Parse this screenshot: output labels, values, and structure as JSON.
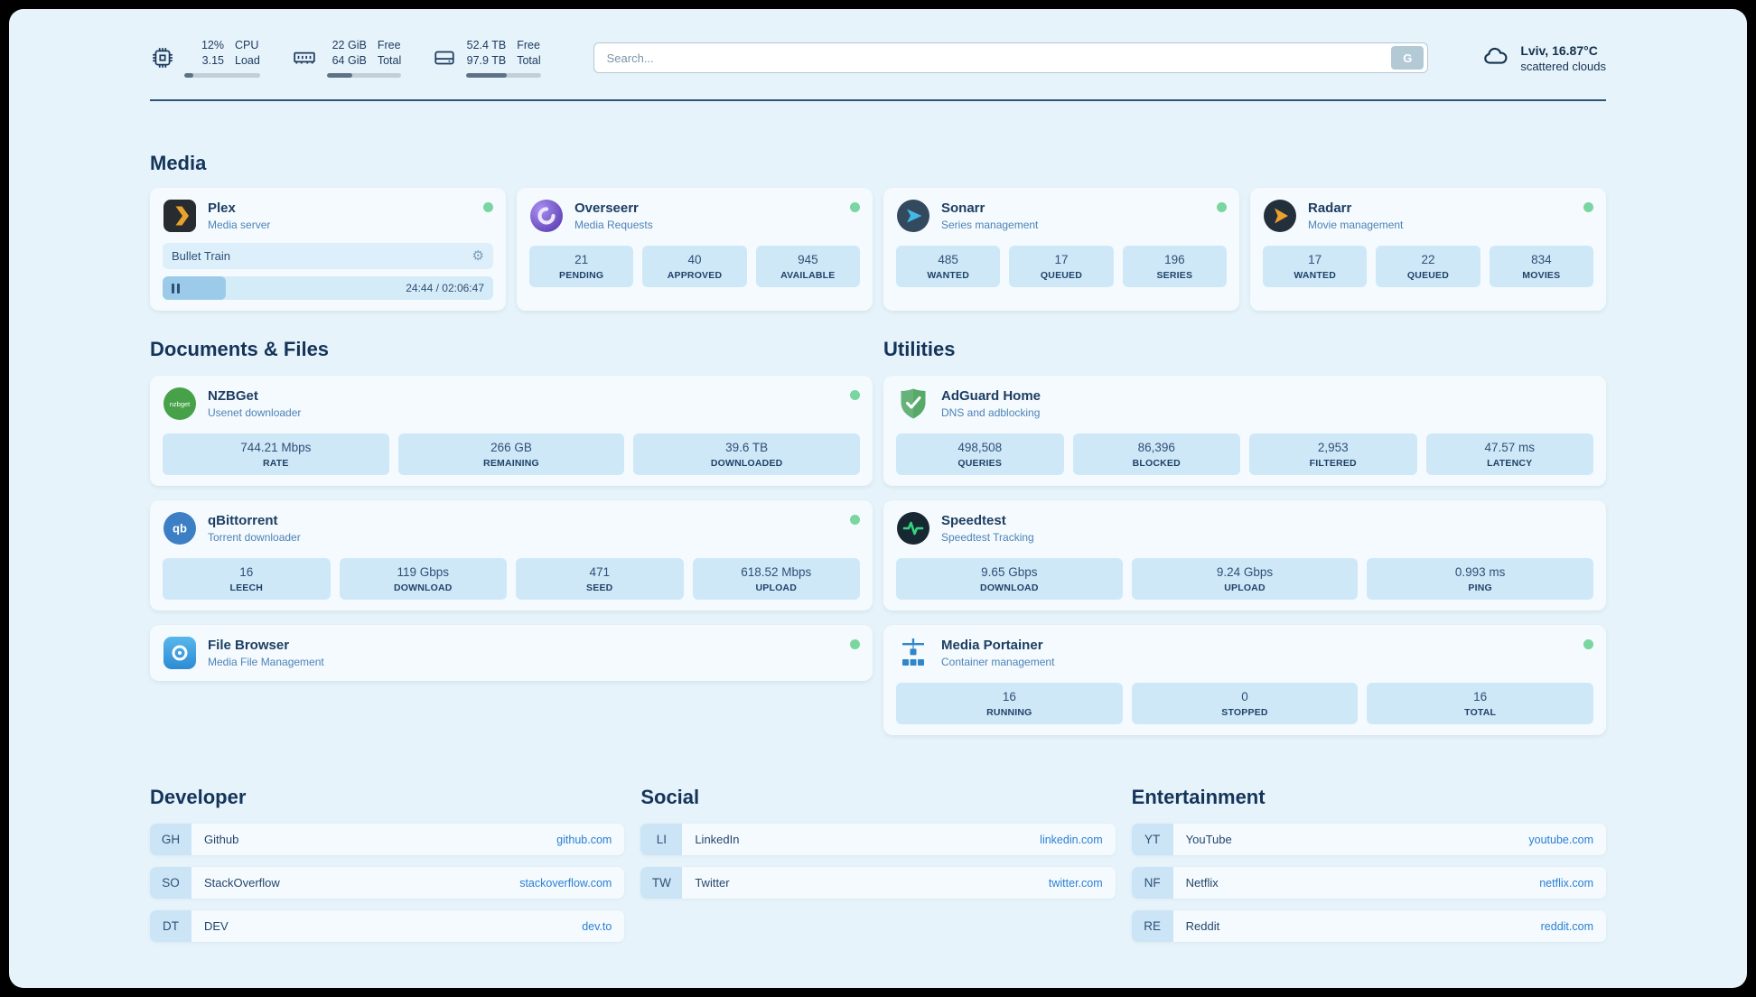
{
  "topbar": {
    "cpu": {
      "value_top": "12%",
      "value_bottom": "3.15",
      "label_top": "CPU",
      "label_bottom": "Load",
      "progress_pct": 12
    },
    "ram": {
      "value_top": "22 GiB",
      "value_bottom": "64 GiB",
      "label_top": "Free",
      "label_bottom": "Total",
      "progress_pct": 34
    },
    "disk": {
      "value_top": "52.4 TB",
      "value_bottom": "97.9 TB",
      "label_top": "Free",
      "label_bottom": "Total",
      "progress_pct": 54
    },
    "search": {
      "placeholder": "Search...",
      "button_label": "G"
    },
    "weather": {
      "location": "Lviv, 16.87°C",
      "condition": "scattered clouds"
    }
  },
  "sections": {
    "media": {
      "title": "Media"
    },
    "documents": {
      "title": "Documents & Files"
    },
    "utilities": {
      "title": "Utilities"
    },
    "developer": {
      "title": "Developer"
    },
    "social": {
      "title": "Social"
    },
    "entertainment": {
      "title": "Entertainment"
    }
  },
  "apps": {
    "plex": {
      "name": "Plex",
      "subtitle": "Media server",
      "now_playing": "Bullet Train",
      "time": "24:44 / 02:06:47",
      "progress_pct": 19
    },
    "overseerr": {
      "name": "Overseerr",
      "subtitle": "Media Requests",
      "stats": [
        {
          "value": "21",
          "label": "PENDING"
        },
        {
          "value": "40",
          "label": "APPROVED"
        },
        {
          "value": "945",
          "label": "AVAILABLE"
        }
      ]
    },
    "sonarr": {
      "name": "Sonarr",
      "subtitle": "Series management",
      "stats": [
        {
          "value": "485",
          "label": "WANTED"
        },
        {
          "value": "17",
          "label": "QUEUED"
        },
        {
          "value": "196",
          "label": "SERIES"
        }
      ]
    },
    "radarr": {
      "name": "Radarr",
      "subtitle": "Movie management",
      "stats": [
        {
          "value": "17",
          "label": "WANTED"
        },
        {
          "value": "22",
          "label": "QUEUED"
        },
        {
          "value": "834",
          "label": "MOVIES"
        }
      ]
    },
    "nzbget": {
      "name": "NZBGet",
      "subtitle": "Usenet downloader",
      "stats": [
        {
          "value": "744.21 Mbps",
          "label": "RATE"
        },
        {
          "value": "266 GB",
          "label": "REMAINING"
        },
        {
          "value": "39.6 TB",
          "label": "DOWNLOADED"
        }
      ]
    },
    "qbittorrent": {
      "name": "qBittorrent",
      "subtitle": "Torrent downloader",
      "stats": [
        {
          "value": "16",
          "label": "LEECH"
        },
        {
          "value": "119 Gbps",
          "label": "DOWNLOAD"
        },
        {
          "value": "471",
          "label": "SEED"
        },
        {
          "value": "618.52 Mbps",
          "label": "UPLOAD"
        }
      ]
    },
    "filebrowser": {
      "name": "File Browser",
      "subtitle": "Media File Management"
    },
    "adguard": {
      "name": "AdGuard Home",
      "subtitle": "DNS and adblocking",
      "stats": [
        {
          "value": "498,508",
          "label": "QUERIES"
        },
        {
          "value": "86,396",
          "label": "BLOCKED"
        },
        {
          "value": "2,953",
          "label": "FILTERED"
        },
        {
          "value": "47.57 ms",
          "label": "LATENCY"
        }
      ]
    },
    "speedtest": {
      "name": "Speedtest",
      "subtitle": "Speedtest Tracking",
      "stats": [
        {
          "value": "9.65 Gbps",
          "label": "DOWNLOAD"
        },
        {
          "value": "9.24 Gbps",
          "label": "UPLOAD"
        },
        {
          "value": "0.993 ms",
          "label": "PING"
        }
      ]
    },
    "portainer": {
      "name": "Media Portainer",
      "subtitle": "Container management",
      "stats": [
        {
          "value": "16",
          "label": "RUNNING"
        },
        {
          "value": "0",
          "label": "STOPPED"
        },
        {
          "value": "16",
          "label": "TOTAL"
        }
      ]
    }
  },
  "bookmarks": {
    "developer": [
      {
        "abbr": "GH",
        "name": "Github",
        "url": "github.com"
      },
      {
        "abbr": "SO",
        "name": "StackOverflow",
        "url": "stackoverflow.com"
      },
      {
        "abbr": "DT",
        "name": "DEV",
        "url": "dev.to"
      }
    ],
    "social": [
      {
        "abbr": "LI",
        "name": "LinkedIn",
        "url": "linkedin.com"
      },
      {
        "abbr": "TW",
        "name": "Twitter",
        "url": "twitter.com"
      }
    ],
    "entertainment": [
      {
        "abbr": "YT",
        "name": "YouTube",
        "url": "youtube.com"
      },
      {
        "abbr": "NF",
        "name": "Netflix",
        "url": "netflix.com"
      },
      {
        "abbr": "RE",
        "name": "Reddit",
        "url": "reddit.com"
      }
    ]
  },
  "icons": {
    "gear": "⚙",
    "nzbget_text": "nzbget",
    "qb_text": "qb"
  },
  "colors": {
    "page_bg": "#e6f3fa",
    "accent_link": "#2b7fd4",
    "status_online": "#79d6a0",
    "stat_box": "#cfe8f8"
  }
}
